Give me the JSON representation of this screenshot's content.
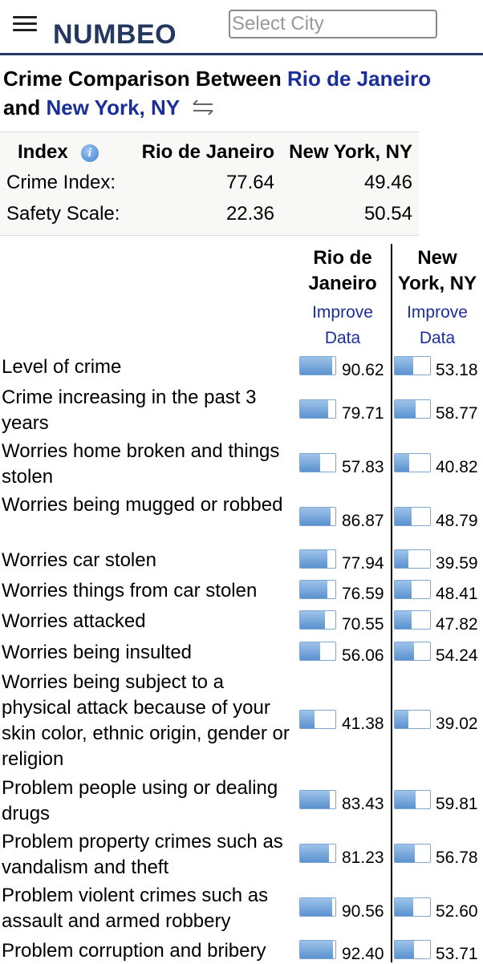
{
  "header": {
    "logo": "NUMBEO",
    "city_placeholder": "Select City"
  },
  "title": {
    "prefix": "Crime Comparison Between ",
    "city1": "Rio de Janeiro",
    "middle": "and ",
    "city2": "New York, NY"
  },
  "index_table": {
    "headers": [
      "Index",
      "Rio de Janeiro",
      "New York, NY"
    ],
    "rows": [
      {
        "label": "Crime Index:",
        "v1": "77.64",
        "v2": "49.46"
      },
      {
        "label": "Safety Scale:",
        "v1": "22.36",
        "v2": "50.54"
      }
    ]
  },
  "columns": {
    "city1": [
      "Rio de",
      "Janeiro"
    ],
    "city2": [
      "New",
      "York, NY"
    ],
    "improve": [
      "Improve",
      "Data"
    ]
  },
  "metrics": [
    {
      "label": "Level of crime",
      "v1": "90.62",
      "v2": "53.18",
      "f1": 0.9062,
      "f2": 0.5318
    },
    {
      "label": "Crime increasing in the past 3 years",
      "v1": "79.71",
      "v2": "58.77",
      "f1": 0.7971,
      "f2": 0.5877
    },
    {
      "label": "Worries home broken and things stolen",
      "v1": "57.83",
      "v2": "40.82",
      "f1": 0.5783,
      "f2": 0.4082
    },
    {
      "label": "Worries being mugged or robbed",
      "v1": "86.87",
      "v2": "48.79",
      "f1": 0.8687,
      "f2": 0.4879
    },
    {
      "label": "Worries car stolen",
      "v1": "77.94",
      "v2": "39.59",
      "f1": 0.7794,
      "f2": 0.3959
    },
    {
      "label": "Worries things from car stolen",
      "v1": "76.59",
      "v2": "48.41",
      "f1": 0.7659,
      "f2": 0.4841
    },
    {
      "label": "Worries attacked",
      "v1": "70.55",
      "v2": "47.82",
      "f1": 0.7055,
      "f2": 0.4782
    },
    {
      "label": "Worries being insulted",
      "v1": "56.06",
      "v2": "54.24",
      "f1": 0.5606,
      "f2": 0.5424
    },
    {
      "label": "Worries being subject to a physical attack because of your skin color, ethnic origin, gender or religion",
      "v1": "41.38",
      "v2": "39.02",
      "f1": 0.4138,
      "f2": 0.3902
    },
    {
      "label": "Problem people using or dealing drugs",
      "v1": "83.43",
      "v2": "59.81",
      "f1": 0.8343,
      "f2": 0.5981
    },
    {
      "label": "Problem property crimes such as vandalism and theft",
      "v1": "81.23",
      "v2": "56.78",
      "f1": 0.8123,
      "f2": 0.5678
    },
    {
      "label": "Problem violent crimes such as assault and armed robbery",
      "v1": "90.56",
      "v2": "52.60",
      "f1": 0.9056,
      "f2": 0.526
    },
    {
      "label": "Problem corruption and bribery",
      "v1": "92.40",
      "v2": "53.71",
      "f1": 0.924,
      "f2": 0.5371
    }
  ],
  "colors": {
    "brand": "#24385f",
    "link": "#1a2e9c",
    "bar_fill": "#5a92cf"
  }
}
